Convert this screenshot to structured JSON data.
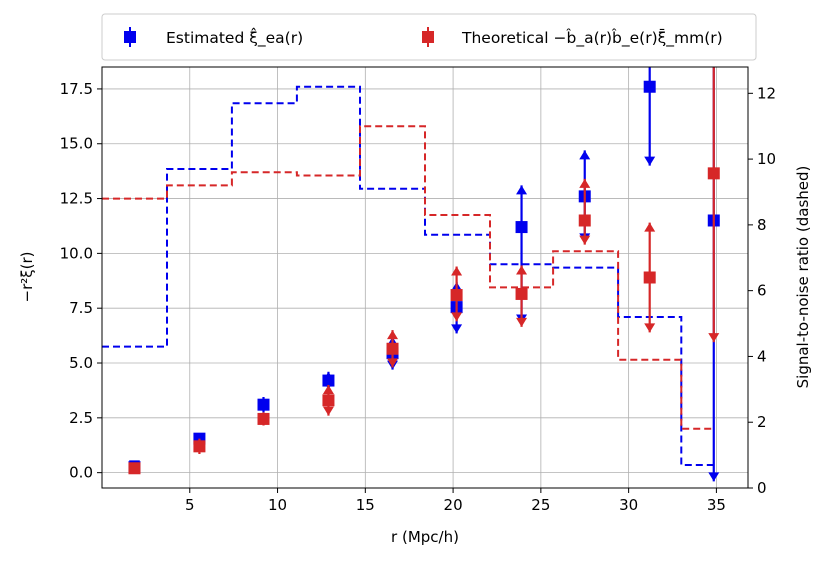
{
  "chart_data": {
    "type": "scatter",
    "title": "",
    "xlabel": "r (Mpc/h)",
    "ylabel": "−r²ξ(r)",
    "y2label": "Signal-to-noise ratio (dashed)",
    "xlim": [
      0,
      36.8
    ],
    "ylim": [
      -0.7,
      18.5
    ],
    "y2lim": [
      0,
      12.8
    ],
    "xticks": [
      5,
      10,
      15,
      20,
      25,
      30,
      35
    ],
    "yticks": [
      0.0,
      2.5,
      5.0,
      7.5,
      10.0,
      12.5,
      15.0,
      17.5
    ],
    "y2ticks": [
      0,
      2,
      4,
      6,
      8,
      10,
      12
    ],
    "grid": true,
    "legend_position": "top-center-outside",
    "r_bins_edges": [
      0.0,
      3.7,
      7.4,
      11.1,
      14.7,
      18.4,
      22.1,
      25.7,
      29.4,
      33.0,
      34.9
    ],
    "series": [
      {
        "name": "Estimated ξ̂_ea(r)",
        "color": "#0000ee",
        "x": [
          1.85,
          5.55,
          9.2,
          12.9,
          16.55,
          20.2,
          23.9,
          27.5,
          31.2,
          34.85
        ],
        "y": [
          0.25,
          1.55,
          3.1,
          4.2,
          5.45,
          7.55,
          11.2,
          12.6,
          17.6,
          11.5
        ],
        "yerr_low": [
          0.1,
          0.25,
          0.35,
          0.4,
          0.75,
          1.2,
          4.4,
          2.1,
          3.6,
          11.9
        ],
        "yerr_high": [
          0.1,
          0.25,
          0.35,
          0.4,
          0.75,
          1.15,
          1.9,
          2.1,
          3.1,
          9.5
        ],
        "snr": [
          4.3,
          9.7,
          11.7,
          12.2,
          9.1,
          7.7,
          6.8,
          6.7,
          5.2,
          0.7
        ]
      },
      {
        "name": "Theoretical −b̂_a(r)b̂_e(r)ξ̄_mm(r)",
        "color": "#d62728",
        "x": [
          1.85,
          5.55,
          9.2,
          12.9,
          16.55,
          20.2,
          23.9,
          27.5,
          31.2,
          34.85
        ],
        "y": [
          0.2,
          1.2,
          2.45,
          3.3,
          5.65,
          8.1,
          8.15,
          11.5,
          8.9,
          13.65
        ],
        "yerr_low": [
          0.2,
          0.35,
          0.3,
          0.7,
          0.85,
          1.2,
          1.5,
          1.1,
          2.5,
          7.7
        ],
        "yerr_high": [
          0.2,
          0.35,
          0.3,
          0.7,
          0.85,
          1.3,
          1.3,
          1.9,
          2.5,
          7.5
        ],
        "snr": [
          8.8,
          9.2,
          9.6,
          9.5,
          11.0,
          8.3,
          6.1,
          7.2,
          3.9,
          1.8
        ]
      }
    ]
  }
}
